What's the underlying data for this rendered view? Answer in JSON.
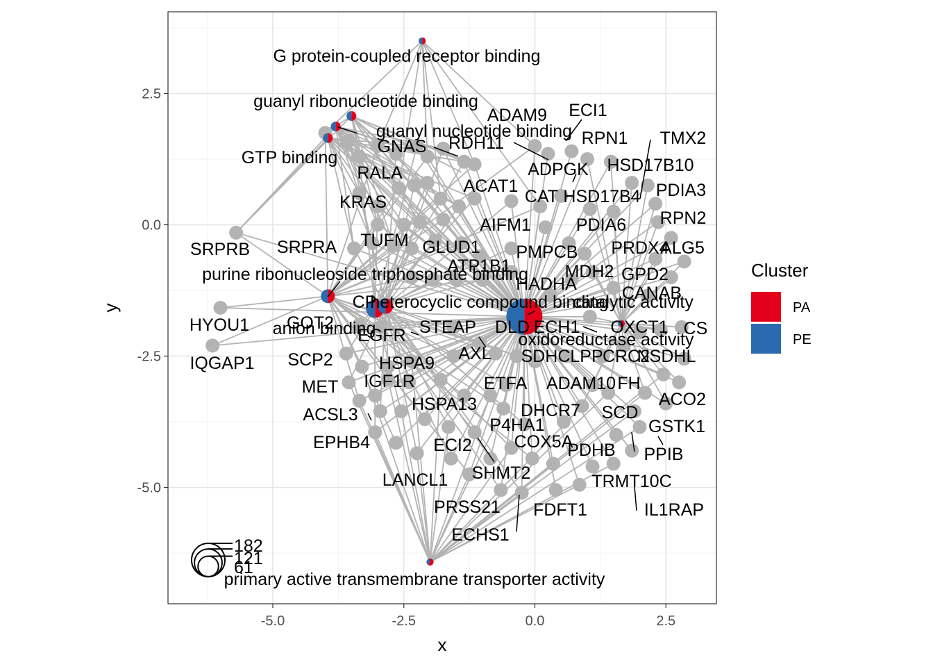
{
  "chart_data": {
    "type": "network",
    "xlabel": "x",
    "ylabel": "y",
    "xlim": [
      -6.75,
      3.4
    ],
    "ylim": [
      -7.0,
      4.05
    ],
    "x_ticks": [
      -5.0,
      -2.5,
      0.0,
      2.5
    ],
    "x_tick_labels": [
      "-5.0",
      "-2.5",
      "0.0",
      "2.5"
    ],
    "y_ticks": [
      2.5,
      0.0,
      -2.5,
      -5.0
    ],
    "y_tick_labels": [
      "2.5",
      "0.0",
      "-2.5",
      "-5.0"
    ],
    "grid": true,
    "legend": {
      "title": "Cluster",
      "position": "right",
      "items": [
        {
          "label": "PA",
          "color": "#E2001A"
        },
        {
          "label": "PE",
          "color": "#2B6AAF"
        }
      ]
    },
    "size_legend": {
      "position": "bottom-left",
      "labels": [
        "182",
        "121",
        "61"
      ],
      "values": [
        182,
        121,
        61
      ]
    },
    "colors": {
      "gene_node": "#B3B3B3",
      "edge": "#B3B3B3",
      "PA": "#E2001A",
      "PE": "#2B6AAF"
    },
    "categories": [
      {
        "name": "G protein-coupled receptor binding",
        "x": -2.15,
        "y": 3.5,
        "size": 3,
        "pa_fraction": 0.5
      },
      {
        "name": "guanyl ribonucleotide binding",
        "x": -3.5,
        "y": 2.07,
        "size": 8,
        "pa_fraction": 0.5
      },
      {
        "name": "guanyl nucleotide binding",
        "x": -3.8,
        "y": 1.87,
        "size": 8,
        "pa_fraction": 0.5
      },
      {
        "name": "GTP binding",
        "x": -3.95,
        "y": 1.65,
        "size": 8,
        "pa_fraction": 0.5
      },
      {
        "name": "purine ribonucleoside triphosphate binding",
        "x": -3.95,
        "y": -1.36,
        "size": 40,
        "pa_fraction": 0.5
      },
      {
        "name": "CP",
        "x": -3.05,
        "y": -1.6,
        "size": 55,
        "pa_fraction": 0.5
      },
      {
        "name": "heterocyclic compound binding",
        "x": -2.85,
        "y": -1.55,
        "size": 40,
        "pa_fraction": 0.5
      },
      {
        "name": "anion binding",
        "x": -2.9,
        "y": -1.6,
        "size": 30,
        "pa_fraction": 0.5
      },
      {
        "name": "catalytic activity",
        "x": -0.2,
        "y": -1.75,
        "size": 182,
        "pa_fraction": 0.5
      },
      {
        "name": "oxidoreductase activity",
        "x": 1.65,
        "y": -1.88,
        "size": 12,
        "pa_fraction": 0.6
      },
      {
        "name": "primary active transmembrane transporter activity",
        "x": -2.0,
        "y": -6.42,
        "size": 3,
        "pa_fraction": 0.6
      }
    ],
    "gene_labels": [
      "ADAM9",
      "ECI1",
      "RDH11",
      "RPN1",
      "TMX2",
      "ADPGK",
      "HSD17B10",
      "GNAS",
      "RALA",
      "ACAT1",
      "CAT",
      "HSD17B4",
      "PDIA3",
      "KRAS",
      "RPN2",
      "AIFM1",
      "PDIA6",
      "SRPRB",
      "SRPRA",
      "TUFM",
      "GLUD1",
      "PMPCB",
      "PRDX4",
      "ALG5",
      "ATP1B1",
      "MDH2",
      "GPD2",
      "HADHA",
      "CANAB",
      "HYOU1",
      "GOT2",
      "EGFR",
      "STEAP",
      "DLD",
      "ECH1",
      "OXCT1",
      "CS",
      "IQGAP1",
      "SCP2",
      "HSPA9",
      "AXL",
      "SDHC",
      "LPP",
      "CRC2",
      "NSDHL",
      "MET",
      "IGF1R",
      "ETFA",
      "ADAM10",
      "FH",
      "ACO2",
      "ACSL3",
      "HSPA13",
      "DHCR7",
      "SCD",
      "GSTK1",
      "EPHB4",
      "P4HA1",
      "ECI2",
      "COX5A",
      "PDHB",
      "PPIB",
      "LANCL1",
      "SHMT2",
      "TRMT10C",
      "PRSS21",
      "FDFT1",
      "IL1RAP",
      "ECHS1"
    ],
    "gene_count": 100
  }
}
